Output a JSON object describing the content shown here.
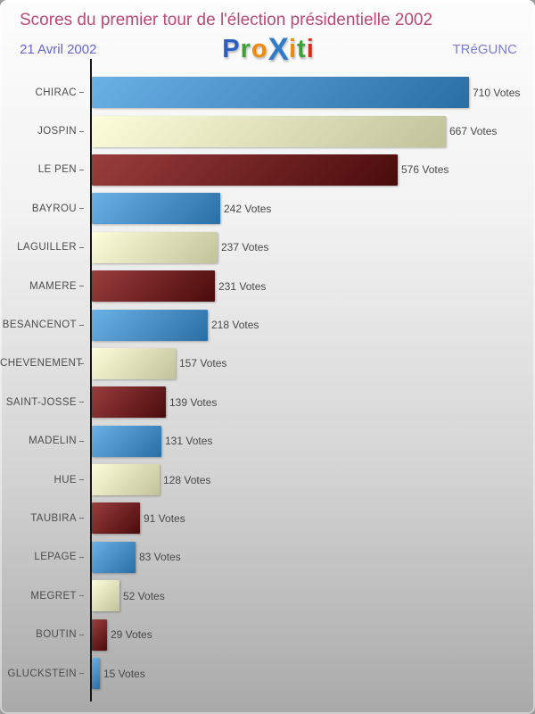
{
  "header": {
    "title": "Scores du premier tour de l'élection présidentielle 2002",
    "date": "21 Avril 2002",
    "location": "TRéGUNC",
    "logo": {
      "name": "Proxiti",
      "letters": [
        {
          "ch": "P",
          "color": "#2a5fc4",
          "big": false
        },
        {
          "ch": "r",
          "color": "#3fa03a",
          "big": false
        },
        {
          "ch": "o",
          "color": "#ee8a0c",
          "big": false
        },
        {
          "ch": "X",
          "color": "#2f7dc6",
          "big": true
        },
        {
          "ch": "i",
          "color": "#ee8a0c",
          "big": false
        },
        {
          "ch": "t",
          "color": "#3fa03a",
          "big": false
        },
        {
          "ch": "i",
          "color": "#d62c1a",
          "big": false
        }
      ]
    }
  },
  "chart_data": {
    "type": "bar",
    "orientation": "horizontal",
    "title": "Scores du premier tour de l'élection présidentielle 2002",
    "categories": [
      "CHIRAC",
      "JOSPIN",
      "LE PEN",
      "BAYROU",
      "LAGUILLER",
      "MAMERE",
      "BESANCENOT",
      "CHEVENEMENT",
      "SAINT-JOSSE",
      "MADELIN",
      "HUE",
      "TAUBIRA",
      "LEPAGE",
      "MEGRET",
      "BOUTIN",
      "GLUCKSTEIN"
    ],
    "values": [
      710,
      667,
      576,
      242,
      237,
      231,
      218,
      157,
      139,
      131,
      128,
      91,
      83,
      52,
      29,
      15
    ],
    "value_suffix": " Votes",
    "xlim": [
      0,
      710
    ],
    "grid": false,
    "legend": false,
    "color_cycle": [
      "blue",
      "cream",
      "darkred"
    ]
  },
  "colors": {
    "title_text": "#b94a76",
    "subtitle_text": "#6565cf",
    "label_text": "#4c4c4c",
    "value_text": "#484848",
    "axis_line": "#151515",
    "bar_gradients": {
      "blue": {
        "from": "#6ab1e6",
        "to": "#2a6ea6"
      },
      "cream": {
        "from": "#fdfdda",
        "to": "#c2c29a"
      },
      "darkred": {
        "from": "#9a3d3d",
        "to": "#4a0b0b"
      }
    }
  }
}
